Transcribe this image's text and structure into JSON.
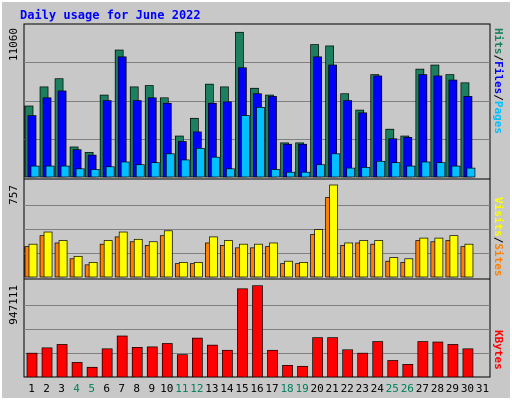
{
  "chart_data": {
    "type": "bar",
    "title": "Daily usage for June 2022",
    "categories": [
      "1",
      "2",
      "3",
      "4",
      "5",
      "6",
      "7",
      "8",
      "9",
      "10",
      "11",
      "12",
      "13",
      "14",
      "15",
      "16",
      "17",
      "18",
      "19",
      "20",
      "21",
      "22",
      "23",
      "24",
      "25",
      "26",
      "27",
      "28",
      "29",
      "30",
      "31"
    ],
    "weekend_days": [
      "4",
      "5",
      "11",
      "12",
      "18",
      "19",
      "25",
      "26"
    ],
    "panels": [
      {
        "name": "traffic",
        "ymax": 11060,
        "ymax_label": "11060",
        "side_labels": [
          "Pages",
          "Files",
          "Hits"
        ],
        "series": [
          {
            "name": "Hits",
            "values": [
              5200,
              6600,
              7200,
              2200,
              1800,
              6000,
              9300,
              6600,
              6700,
              5800,
              3000,
              4300,
              6800,
              6600,
              10600,
              6500,
              6000,
              2500,
              2500,
              9700,
              9600,
              6100,
              4900,
              7500,
              3500,
              3000,
              7900,
              8200,
              7500,
              6900,
              0
            ]
          },
          {
            "name": "Files",
            "values": [
              4500,
              5800,
              6300,
              2000,
              1600,
              5600,
              8800,
              5600,
              5800,
              5400,
              2600,
              3300,
              5400,
              5500,
              8000,
              6100,
              5900,
              2400,
              2400,
              8800,
              8200,
              5600,
              4700,
              7400,
              2800,
              2900,
              7500,
              7400,
              7100,
              5900,
              0
            ]
          },
          {
            "name": "Pages",
            "values": [
              800,
              800,
              800,
              600,
              550,
              750,
              1100,
              900,
              1050,
              1700,
              1250,
              2100,
              1450,
              600,
              4500,
              5100,
              550,
              350,
              350,
              900,
              1700,
              650,
              700,
              1150,
              1050,
              800,
              1100,
              1050,
              800,
              650,
              0
            ]
          }
        ],
        "colors": {
          "Hits": "#1c8060",
          "Files": "#0000ff",
          "Pages": "#00c0ff"
        }
      },
      {
        "name": "visitors",
        "ymax": 757,
        "ymax_label": "757",
        "side_labels": [
          "Sites",
          "Visits"
        ],
        "series": [
          {
            "name": "Visits",
            "values": [
              270,
              370,
              300,
              170,
              120,
              300,
              370,
              310,
              290,
              380,
              120,
              120,
              330,
              300,
              270,
              270,
              280,
              130,
              120,
              390,
              757,
              280,
              300,
              300,
              160,
              150,
              320,
              320,
              340,
              270,
              0
            ]
          },
          {
            "name": "Sites",
            "values": [
              250,
              340,
              280,
              150,
              100,
              270,
              330,
              290,
              260,
              340,
              110,
              110,
              280,
              260,
              240,
              240,
              250,
              110,
              110,
              350,
              655,
              260,
              280,
              270,
              130,
              120,
              300,
              290,
              300,
              250,
              0
            ]
          }
        ],
        "colors": {
          "Visits": "#ffff00",
          "Sites": "#ff8000"
        }
      },
      {
        "name": "kbytes",
        "ymax": 947111,
        "ymax_label": "947111",
        "side_labels": [
          "KBytes"
        ],
        "series": [
          {
            "name": "KBytes",
            "values": [
              245000,
              300000,
              335000,
              150000,
              100000,
              290000,
              422000,
              305000,
              310000,
              345000,
              230000,
              400000,
              328000,
              275000,
              908000,
              940000,
              275000,
              120000,
              110000,
              405000,
              405000,
              280000,
              245000,
              365000,
              170000,
              130000,
              365000,
              360000,
              335000,
              290000,
              0
            ]
          }
        ],
        "colors": {
          "KBytes": "#ff0000"
        }
      }
    ],
    "style": {
      "frame_bg": "#c8c8c8",
      "title_color": "#0000ff",
      "axis_label_color": "#000000",
      "weekday_label_color": "#000000",
      "weekend_label_color": "#00805c",
      "separator_color": "#000000",
      "grid_color": "#808080"
    },
    "grid": true
  }
}
